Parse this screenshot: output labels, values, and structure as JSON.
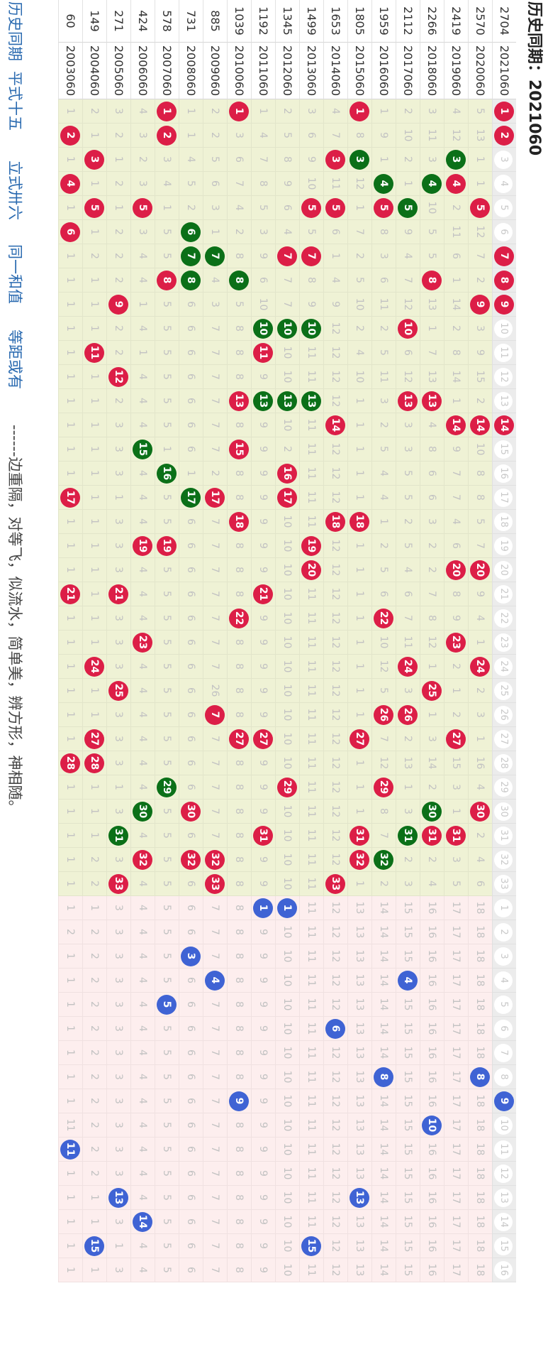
{
  "page": {
    "title": "历史同期：2021060"
  },
  "legend_notes": [
    "历史同期",
    "平式十五",
    "立式卅六",
    "同一和值",
    "等距或有",
    "------边重隔，对等飞，似流水，简单美，辨方形，神相随。"
  ],
  "colors": {
    "red": "#dc1e47",
    "green": "#0b7018",
    "blue": "#3f63d4",
    "red_zone": "#eff2d5",
    "blue_zone": "#fdeeee"
  },
  "red_header": [
    "1",
    "2",
    "3",
    "4",
    "5",
    "6",
    "7",
    "8",
    "9",
    "10",
    "11",
    "12",
    "13",
    "14",
    "15",
    "16",
    "17",
    "18",
    "19",
    "20",
    "21",
    "22",
    "23",
    "24",
    "25",
    "26",
    "27",
    "28",
    "29",
    "30",
    "31",
    "32",
    "33"
  ],
  "blue_header": [
    "1",
    "2",
    "3",
    "4",
    "5",
    "6",
    "7",
    "8",
    "9",
    "10",
    "11",
    "12",
    "13",
    "14",
    "15",
    "16"
  ],
  "rows": [
    {
      "idx": "60",
      "period": "2003060",
      "red": [
        "1",
        "2",
        "1",
        "4",
        "1",
        "6",
        "1",
        "1",
        "1",
        "1",
        "1",
        "1",
        "1",
        "1",
        "1",
        "1",
        "17",
        "1",
        "1",
        "1",
        "21",
        "1",
        "1",
        "1",
        "1",
        "1",
        "1",
        "28",
        "1",
        "1",
        "1",
        "1",
        "1"
      ],
      "red_color": {
        "2": "red",
        "4": "red",
        "6": "red",
        "17": "red",
        "21": "red",
        "28": "red"
      },
      "blue": [
        "1",
        "2",
        "1",
        "1",
        "1",
        "1",
        "1",
        "1",
        "1",
        "11",
        "1",
        "1",
        "1",
        "1",
        "1",
        "1"
      ],
      "blue_ball": "11"
    },
    {
      "idx": "149",
      "period": "2004060",
      "red": [
        "2",
        "1",
        "3",
        "1",
        "5",
        "1",
        "2",
        "1",
        "1",
        "1",
        "11",
        "1",
        "1",
        "1",
        "1",
        "1",
        "1",
        "1",
        "1",
        "1",
        "1",
        "1",
        "1",
        "24",
        "1",
        "1",
        "27",
        "28",
        "1",
        "1",
        "1",
        "2",
        "2"
      ],
      "red_color": {
        "3": "red",
        "5": "red",
        "11": "red",
        "24": "red",
        "27": "red",
        "28": "red"
      },
      "blue": [
        "1",
        "2",
        "2",
        "2",
        "2",
        "2",
        "2",
        "2",
        "2",
        "2",
        "2",
        "2",
        "1",
        "1",
        "15",
        "1"
      ],
      "blue_ball": "15"
    },
    {
      "idx": "271",
      "period": "2005060",
      "red": [
        "3",
        "2",
        "1",
        "2",
        "1",
        "2",
        "2",
        "2",
        "9",
        "2",
        "2",
        "12",
        "2",
        "3",
        "3",
        "3",
        "1",
        "3",
        "3",
        "3",
        "21",
        "3",
        "3",
        "3",
        "25",
        "3",
        "3",
        "3",
        "1",
        "3",
        "31",
        "3",
        "33"
      ],
      "red_color": {
        "9": "red",
        "12": "red",
        "21": "red",
        "25": "red",
        "33": "red"
      },
      "red_green": {
        "31": "green"
      },
      "blue": [
        "3",
        "3",
        "3",
        "3",
        "3",
        "3",
        "3",
        "3",
        "3",
        "3",
        "3",
        "3",
        "13",
        "3",
        "1",
        "3"
      ],
      "blue_ball": "13"
    },
    {
      "idx": "424",
      "period": "2006060",
      "red": [
        "4",
        "3",
        "2",
        "3",
        "5",
        "3",
        "4",
        "4",
        "1",
        "4",
        "1",
        "4",
        "4",
        "4",
        "15",
        "4",
        "4",
        "4",
        "19",
        "4",
        "4",
        "4",
        "23",
        "4",
        "4",
        "4",
        "4",
        "4",
        "4",
        "30",
        "4",
        "32",
        "4"
      ],
      "red_color": {
        "5": "red",
        "19": "red",
        "23": "red",
        "32": "red"
      },
      "red_green": {
        "15": "green",
        "30": "green"
      },
      "blue": [
        "4",
        "4",
        "4",
        "4",
        "4",
        "4",
        "4",
        "4",
        "4",
        "4",
        "4",
        "4",
        "4",
        "14",
        "4",
        "4"
      ],
      "blue_ball": "14"
    },
    {
      "idx": "578",
      "period": "2007060",
      "red": [
        "1",
        "2",
        "3",
        "4",
        "1",
        "5",
        "5",
        "8",
        "5",
        "5",
        "5",
        "5",
        "5",
        "5",
        "1",
        "16",
        "5",
        "5",
        "19",
        "5",
        "5",
        "5",
        "5",
        "5",
        "5",
        "5",
        "5",
        "5",
        "29",
        "5",
        "5",
        "5",
        "5"
      ],
      "red_color": {
        "1": "red",
        "2": "red",
        "8": "red",
        "19": "red"
      },
      "red_green": {
        "16": "green",
        "29": "green"
      },
      "blue": [
        "5",
        "5",
        "5",
        "5",
        "5",
        "5",
        "5",
        "5",
        "5",
        "5",
        "5",
        "5",
        "5",
        "5",
        "5",
        "5"
      ],
      "blue_ball": "5"
    },
    {
      "idx": "731",
      "period": "2008060",
      "red": [
        "1",
        "1",
        "4",
        "5",
        "2",
        "6",
        "7",
        "8",
        "6",
        "6",
        "6",
        "6",
        "6",
        "6",
        "6",
        "1",
        "17",
        "6",
        "6",
        "6",
        "6",
        "6",
        "6",
        "6",
        "6",
        "6",
        "6",
        "6",
        "6",
        "30",
        "6",
        "32",
        "6"
      ],
      "red_color": {
        "30": "red",
        "32": "red"
      },
      "red_green": {
        "6": "green",
        "7": "green",
        "8": "green",
        "17": "green"
      },
      "blue": [
        "6",
        "6",
        "3",
        "6",
        "6",
        "6",
        "6",
        "6",
        "6",
        "6",
        "6",
        "6",
        "6",
        "6",
        "6",
        "6"
      ],
      "blue_ball": "3"
    },
    {
      "idx": "885",
      "period": "2009060",
      "red": [
        "2",
        "2",
        "5",
        "6",
        "3",
        "1",
        "7",
        "4",
        "3",
        "7",
        "7",
        "7",
        "7",
        "7",
        "7",
        "2",
        "17",
        "7",
        "7",
        "7",
        "7",
        "7",
        "7",
        "7",
        "26",
        "7",
        "7",
        "7",
        "7",
        "7",
        "7",
        "32",
        "33"
      ],
      "red_color": {
        "17": "red",
        "26": "red",
        "32": "red",
        "33": "red"
      },
      "red_green": {
        "7": "green"
      },
      "blue": [
        "7",
        "7",
        "7",
        "4",
        "7",
        "7",
        "7",
        "7",
        "7",
        "7",
        "7",
        "7",
        "7",
        "7",
        "7",
        "7"
      ],
      "blue_ball": "4"
    },
    {
      "idx": "1039",
      "period": "2010060",
      "red": [
        "1",
        "3",
        "6",
        "7",
        "4",
        "2",
        "8",
        "8",
        "5",
        "8",
        "8",
        "8",
        "13",
        "8",
        "15",
        "8",
        "8",
        "18",
        "8",
        "8",
        "8",
        "22",
        "8",
        "8",
        "8",
        "8",
        "27",
        "8",
        "8",
        "8",
        "8",
        "8",
        "8"
      ],
      "red_color": {
        "1": "red",
        "13": "red",
        "15": "red",
        "18": "red",
        "22": "red",
        "27": "red"
      },
      "red_green": {
        "8": "green"
      },
      "blue": [
        "8",
        "8",
        "8",
        "8",
        "8",
        "8",
        "8",
        "8",
        "9",
        "8",
        "8",
        "8",
        "8",
        "8",
        "8",
        "8"
      ],
      "blue_ball": "9"
    },
    {
      "idx": "1192",
      "period": "2011060",
      "red": [
        "1",
        "4",
        "7",
        "8",
        "5",
        "3",
        "9",
        "6",
        "10",
        "10",
        "11",
        "9",
        "13",
        "9",
        "9",
        "9",
        "9",
        "9",
        "9",
        "9",
        "21",
        "9",
        "9",
        "9",
        "9",
        "9",
        "27",
        "9",
        "9",
        "9",
        "31",
        "9",
        "9"
      ],
      "red_color": {
        "11": "red",
        "21": "red",
        "27": "red",
        "31": "red"
      },
      "red_green": {
        "10": "green",
        "13": "green"
      },
      "blue": [
        "1",
        "9",
        "9",
        "9",
        "9",
        "9",
        "9",
        "9",
        "9",
        "9",
        "9",
        "9",
        "9",
        "9",
        "9",
        "9"
      ],
      "blue_ball": "1"
    },
    {
      "idx": "1345",
      "period": "2012060",
      "red": [
        "2",
        "5",
        "8",
        "9",
        "6",
        "4",
        "7",
        "7",
        "7",
        "10",
        "10",
        "10",
        "13",
        "10",
        "2",
        "16",
        "17",
        "10",
        "10",
        "10",
        "10",
        "10",
        "10",
        "10",
        "10",
        "10",
        "10",
        "10",
        "29",
        "10",
        "10",
        "10",
        "10"
      ],
      "red_color": {
        "7": "red",
        "16": "red",
        "17": "red",
        "29": "red"
      },
      "red_green": {
        "10": "green",
        "13": "green"
      },
      "blue": [
        "1",
        "10",
        "10",
        "10",
        "10",
        "10",
        "10",
        "10",
        "10",
        "10",
        "10",
        "10",
        "10",
        "10",
        "10",
        "10"
      ],
      "blue_ball": "1"
    },
    {
      "idx": "1499",
      "period": "2013060",
      "red": [
        "3",
        "6",
        "9",
        "10",
        "5",
        "5",
        "7",
        "8",
        "9",
        "10",
        "11",
        "11",
        "13",
        "11",
        "11",
        "11",
        "11",
        "11",
        "19",
        "20",
        "11",
        "11",
        "11",
        "11",
        "11",
        "11",
        "11",
        "11",
        "11",
        "11",
        "11",
        "11",
        "11"
      ],
      "red_color": {
        "5": "red",
        "7": "red",
        "19": "red",
        "20": "red"
      },
      "red_green": {
        "10": "green",
        "13": "green"
      },
      "blue": [
        "11",
        "11",
        "11",
        "11",
        "11",
        "11",
        "11",
        "11",
        "11",
        "11",
        "11",
        "11",
        "11",
        "11",
        "15",
        "11"
      ],
      "blue_ball": "15"
    },
    {
      "idx": "1653",
      "period": "2014060",
      "red": [
        "4",
        "7",
        "3",
        "11",
        "5",
        "6",
        "1",
        "4",
        "9",
        "12",
        "12",
        "12",
        "12",
        "14",
        "12",
        "12",
        "12",
        "18",
        "12",
        "12",
        "12",
        "12",
        "12",
        "12",
        "12",
        "12",
        "12",
        "12",
        "12",
        "12",
        "12",
        "12",
        "33"
      ],
      "red_color": {
        "3": "red",
        "5": "red",
        "14": "red",
        "18": "red",
        "33": "red"
      },
      "blue": [
        "12",
        "12",
        "12",
        "12",
        "12",
        "6",
        "12",
        "12",
        "12",
        "12",
        "12",
        "12",
        "12",
        "12",
        "12",
        "12"
      ],
      "blue_ball": "6"
    },
    {
      "idx": "1805",
      "period": "2015060",
      "red": [
        "1",
        "8",
        "3",
        "12",
        "1",
        "7",
        "2",
        "5",
        "10",
        "2",
        "4",
        "10",
        "1",
        "1",
        "1",
        "1",
        "1",
        "18",
        "1",
        "1",
        "1",
        "1",
        "1",
        "1",
        "1",
        "1",
        "27",
        "1",
        "1",
        "1",
        "31",
        "32",
        "1"
      ],
      "red_color": {
        "1": "red",
        "18": "red",
        "27": "red",
        "31": "red",
        "32": "red"
      },
      "red_green": {
        "3": "green"
      },
      "blue": [
        "13",
        "13",
        "13",
        "13",
        "13",
        "13",
        "13",
        "13",
        "13",
        "13",
        "13",
        "13",
        "13",
        "13",
        "13",
        "13"
      ],
      "blue_ball": "13"
    },
    {
      "idx": "1959",
      "period": "2016060",
      "red": [
        "1",
        "9",
        "1",
        "4",
        "5",
        "8",
        "3",
        "6",
        "11",
        "2",
        "5",
        "11",
        "3",
        "2",
        "5",
        "4",
        "4",
        "1",
        "2",
        "5",
        "6",
        "22",
        "10",
        "12",
        "5",
        "26",
        "7",
        "12",
        "29",
        "8",
        "7",
        "32",
        "2"
      ],
      "red_color": {
        "5": "red",
        "22": "red",
        "26": "red",
        "29": "red"
      },
      "red_green": {
        "4": "green",
        "32": "green"
      },
      "blue": [
        "14",
        "14",
        "14",
        "14",
        "14",
        "14",
        "14",
        "8",
        "14",
        "14",
        "14",
        "14",
        "14",
        "14",
        "14",
        "14"
      ],
      "blue_ball": "8"
    },
    {
      "idx": "2112",
      "period": "2017060",
      "red": [
        "2",
        "10",
        "2",
        "1",
        "5",
        "9",
        "4",
        "7",
        "12",
        "10",
        "6",
        "12",
        "13",
        "3",
        "3",
        "5",
        "5",
        "2",
        "5",
        "4",
        "6",
        "7",
        "11",
        "24",
        "3",
        "26",
        "2",
        "13",
        "1",
        "3",
        "31",
        "2",
        "3"
      ],
      "red_color": {
        "10": "red",
        "13": "red",
        "24": "red",
        "26": "red"
      },
      "red_green": {
        "5": "green",
        "31": "green"
      },
      "blue": [
        "15",
        "15",
        "15",
        "4",
        "15",
        "15",
        "15",
        "15",
        "15",
        "15",
        "15",
        "15",
        "15",
        "15",
        "15",
        "15"
      ],
      "blue_ball": "4"
    },
    {
      "idx": "2266",
      "period": "2018060",
      "red": [
        "3",
        "11",
        "3",
        "4",
        "10",
        "5",
        "5",
        "8",
        "13",
        "1",
        "7",
        "13",
        "13",
        "4",
        "8",
        "6",
        "6",
        "3",
        "2",
        "2",
        "7",
        "8",
        "12",
        "1",
        "25",
        "1",
        "3",
        "14",
        "2",
        "30",
        "31",
        "2",
        "4"
      ],
      "red_color": {
        "8": "red",
        "13": "red",
        "25": "red",
        "31": "red"
      },
      "red_green": {
        "4": "green",
        "30": "green"
      },
      "blue": [
        "16",
        "16",
        "16",
        "16",
        "16",
        "16",
        "16",
        "16",
        "16",
        "10",
        "16",
        "16",
        "16",
        "16",
        "16",
        "16"
      ],
      "blue_ball": "10"
    },
    {
      "idx": "2419",
      "period": "2019060",
      "red": [
        "4",
        "12",
        "3",
        "4",
        "2",
        "11",
        "6",
        "1",
        "14",
        "2",
        "8",
        "14",
        "1",
        "14",
        "9",
        "7",
        "7",
        "4",
        "6",
        "20",
        "8",
        "9",
        "23",
        "2",
        "1",
        "2",
        "27",
        "15",
        "3",
        "1",
        "31",
        "3",
        "5"
      ],
      "red_color": {
        "4": "red",
        "14": "red",
        "20": "red",
        "23": "red",
        "27": "red",
        "31": "red"
      },
      "red_green": {
        "3": "green"
      },
      "blue": [
        "17",
        "17",
        "17",
        "17",
        "17",
        "17",
        "17",
        "17",
        "17",
        "17",
        "17",
        "17",
        "17",
        "17",
        "17",
        "17"
      ],
      "blue_ball": "17"
    },
    {
      "idx": "2570",
      "period": "2020060",
      "red": [
        "5",
        "13",
        "1",
        "1",
        "5",
        "12",
        "7",
        "2",
        "9",
        "3",
        "9",
        "15",
        "2",
        "14",
        "10",
        "8",
        "8",
        "5",
        "7",
        "20",
        "9",
        "4",
        "1",
        "24",
        "2",
        "3",
        "1",
        "16",
        "4",
        "30",
        "2",
        "4",
        "6"
      ],
      "red_color": {
        "5": "red",
        "9": "red",
        "14": "red",
        "20": "red",
        "24": "red",
        "30": "red"
      },
      "blue": [
        "18",
        "18",
        "18",
        "18",
        "18",
        "18",
        "18",
        "8",
        "18",
        "18",
        "18",
        "18",
        "18",
        "18",
        "18",
        "18"
      ],
      "blue_ball": "8"
    },
    {
      "idx": "2704",
      "period": "2021060",
      "red": [
        "1",
        "2",
        "3",
        "4",
        "5",
        "6",
        "7",
        "8",
        "9",
        "10",
        "11",
        "12",
        "13",
        "14",
        "15",
        "16",
        "17",
        "18",
        "19",
        "20",
        "21",
        "22",
        "23",
        "24",
        "25",
        "26",
        "27",
        "28",
        "29",
        "30",
        "31",
        "32",
        "33"
      ],
      "red_color": {
        "1": "red",
        "2": "red",
        "7": "red",
        "8": "red",
        "9": "red",
        "14": "red"
      },
      "header_row": true,
      "blue": [
        "1",
        "2",
        "3",
        "4",
        "5",
        "6",
        "7",
        "8",
        "9",
        "10",
        "11",
        "12",
        "13",
        "14",
        "15",
        "16"
      ],
      "blue_ball": "9"
    }
  ]
}
